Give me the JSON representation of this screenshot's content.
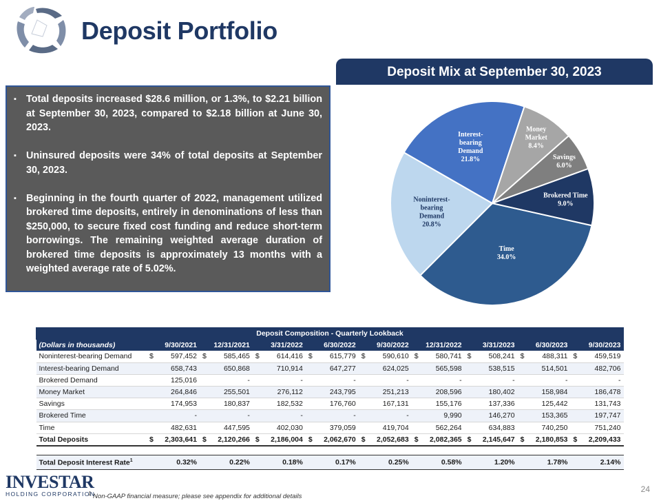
{
  "title": "Deposit Portfolio",
  "mix_header": "Deposit Mix at September 30, 2023",
  "bullets": [
    "Total deposits increased $28.6 million, or 1.3%, to $2.21 billion at September 30, 2023, compared to $2.18 billion at June 30, 2023.",
    "Uninsured deposits were 34% of total deposits at September 30, 2023.",
    "Beginning in the fourth quarter of 2022, management utilized brokered time deposits, entirely in denominations of less than $250,000, to secure fixed cost funding and reduce short-term borrowings. The remaining weighted average duration of brokered time deposits is approximately 13 months with a weighted average rate of 5.02%."
  ],
  "bullet_mark": "▪",
  "chart_data": {
    "type": "pie",
    "title": "Deposit Mix at September 30, 2023",
    "start_angle_deg": 12.6,
    "slices": [
      {
        "label": "Time",
        "value": 34.0,
        "pct": "34.0%",
        "color": "#2e5b8f"
      },
      {
        "label": "Noninterest-bearing Demand",
        "value": 20.8,
        "pct": "20.8%",
        "color": "#bdd7ee"
      },
      {
        "label": "Interest-bearing Demand",
        "value": 21.8,
        "pct": "21.8%",
        "color": "#4472c4"
      },
      {
        "label": "Money Market",
        "value": 8.4,
        "pct": "8.4%",
        "color": "#a6a6a6"
      },
      {
        "label": "Savings",
        "value": 6.0,
        "pct": "6.0%",
        "color": "#7f7f7f"
      },
      {
        "label": "Brokered Time",
        "value": 9.0,
        "pct": "9.0%",
        "color": "#1f3864"
      }
    ]
  },
  "table": {
    "caption": "Deposit Composition - Quarterly Lookback",
    "units_label": "(Dollars in thousands)",
    "columns": [
      "9/30/2021",
      "12/31/2021",
      "3/31/2022",
      "6/30/2022",
      "9/30/2022",
      "12/31/2022",
      "3/31/2023",
      "6/30/2023",
      "9/30/2023"
    ],
    "rows": [
      {
        "label": "Noninterest-bearing Demand",
        "dollar": true,
        "values": [
          "597,452",
          "585,465",
          "614,416",
          "615,779",
          "590,610",
          "580,741",
          "508,241",
          "488,311",
          "459,519"
        ]
      },
      {
        "label": "Interest-bearing Demand",
        "dollar": false,
        "values": [
          "658,743",
          "650,868",
          "710,914",
          "647,277",
          "624,025",
          "565,598",
          "538,515",
          "514,501",
          "482,706"
        ]
      },
      {
        "label": "Brokered Demand",
        "dollar": false,
        "values": [
          "125,016",
          "-",
          "-",
          "-",
          "-",
          "-",
          "-",
          "-",
          "-"
        ]
      },
      {
        "label": "Money Market",
        "dollar": false,
        "values": [
          "264,846",
          "255,501",
          "276,112",
          "243,795",
          "251,213",
          "208,596",
          "180,402",
          "158,984",
          "186,478"
        ]
      },
      {
        "label": "Savings",
        "dollar": false,
        "values": [
          "174,953",
          "180,837",
          "182,532",
          "176,760",
          "167,131",
          "155,176",
          "137,336",
          "125,442",
          "131,743"
        ]
      },
      {
        "label": "Brokered Time",
        "dollar": false,
        "values": [
          "-",
          "-",
          "-",
          "-",
          "-",
          "9,990",
          "146,270",
          "153,365",
          "197,747"
        ]
      },
      {
        "label": "Time",
        "dollar": false,
        "values": [
          "482,631",
          "447,595",
          "402,030",
          "379,059",
          "419,704",
          "562,264",
          "634,883",
          "740,250",
          "751,240"
        ]
      }
    ],
    "total": {
      "label": "Total Deposits",
      "dollar": true,
      "values": [
        "2,303,641",
        "2,120,266",
        "2,186,004",
        "2,062,670",
        "2,052,683",
        "2,082,365",
        "2,145,647",
        "2,180,853",
        "2,209,433"
      ]
    },
    "rate": {
      "label": "Total Deposit Interest Rate",
      "sup": "1",
      "values": [
        "0.32%",
        "0.22%",
        "0.18%",
        "0.17%",
        "0.25%",
        "0.58%",
        "1.20%",
        "1.78%",
        "2.14%"
      ]
    },
    "dollar_sign": "$"
  },
  "footnote_sup": "1",
  "footnote": "Non-GAAP financial measure; please see appendix for additional details",
  "page_number": "24",
  "logo": {
    "name": "INVESTAR",
    "sub": "HOLDING CORPORATION"
  }
}
